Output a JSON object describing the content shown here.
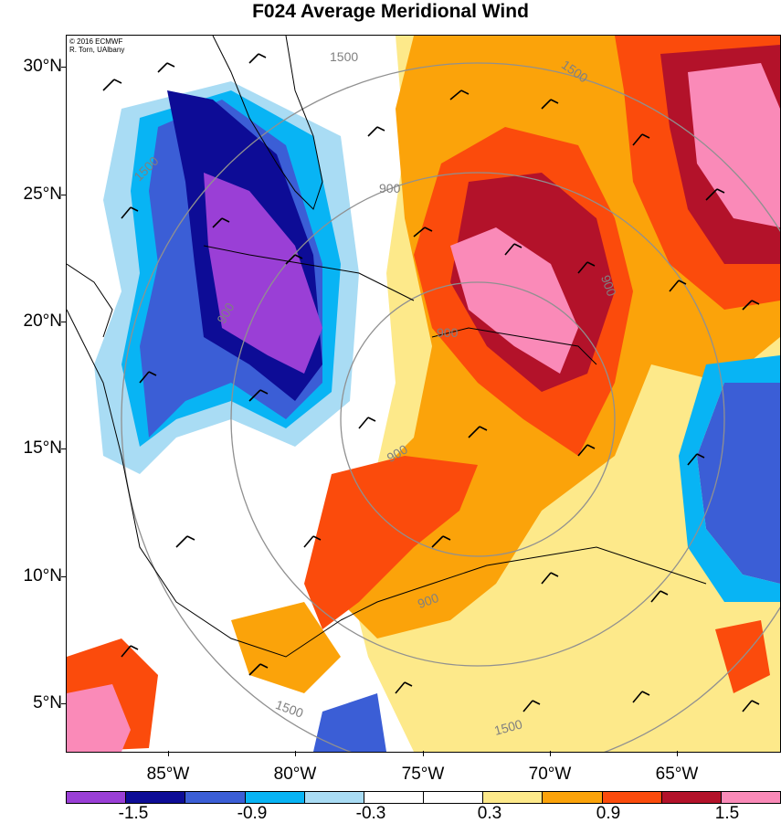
{
  "title": "F024 Average Meridional Wind",
  "credit": {
    "line1": "© 2016 ECMWF",
    "line2": "R. Torn, UAlbany"
  },
  "axes": {
    "lat_labels": [
      "30°N",
      "25°N",
      "20°N",
      "15°N",
      "10°N",
      "5°N"
    ],
    "lon_labels": [
      "85°W",
      "80°W",
      "75°W",
      "70°W",
      "65°W"
    ]
  },
  "range_ring_labels": [
    "1500",
    "1500",
    "900",
    "900",
    "900",
    "900",
    "900",
    "900",
    "1500",
    "1500",
    "1500"
  ],
  "colorbar": {
    "colors": [
      "#9a3fd6",
      "#0d0c96",
      "#3b5ed6",
      "#08b4f4",
      "#a9dcf4",
      "#ffffff",
      "#ffffff",
      "#fde98a",
      "#fba30a",
      "#fb4b0c",
      "#b3122a",
      "#fa8ab8"
    ],
    "labels": [
      "-1.5",
      "-0.9",
      "-0.3",
      "0.3",
      "0.9",
      "1.5"
    ]
  }
}
